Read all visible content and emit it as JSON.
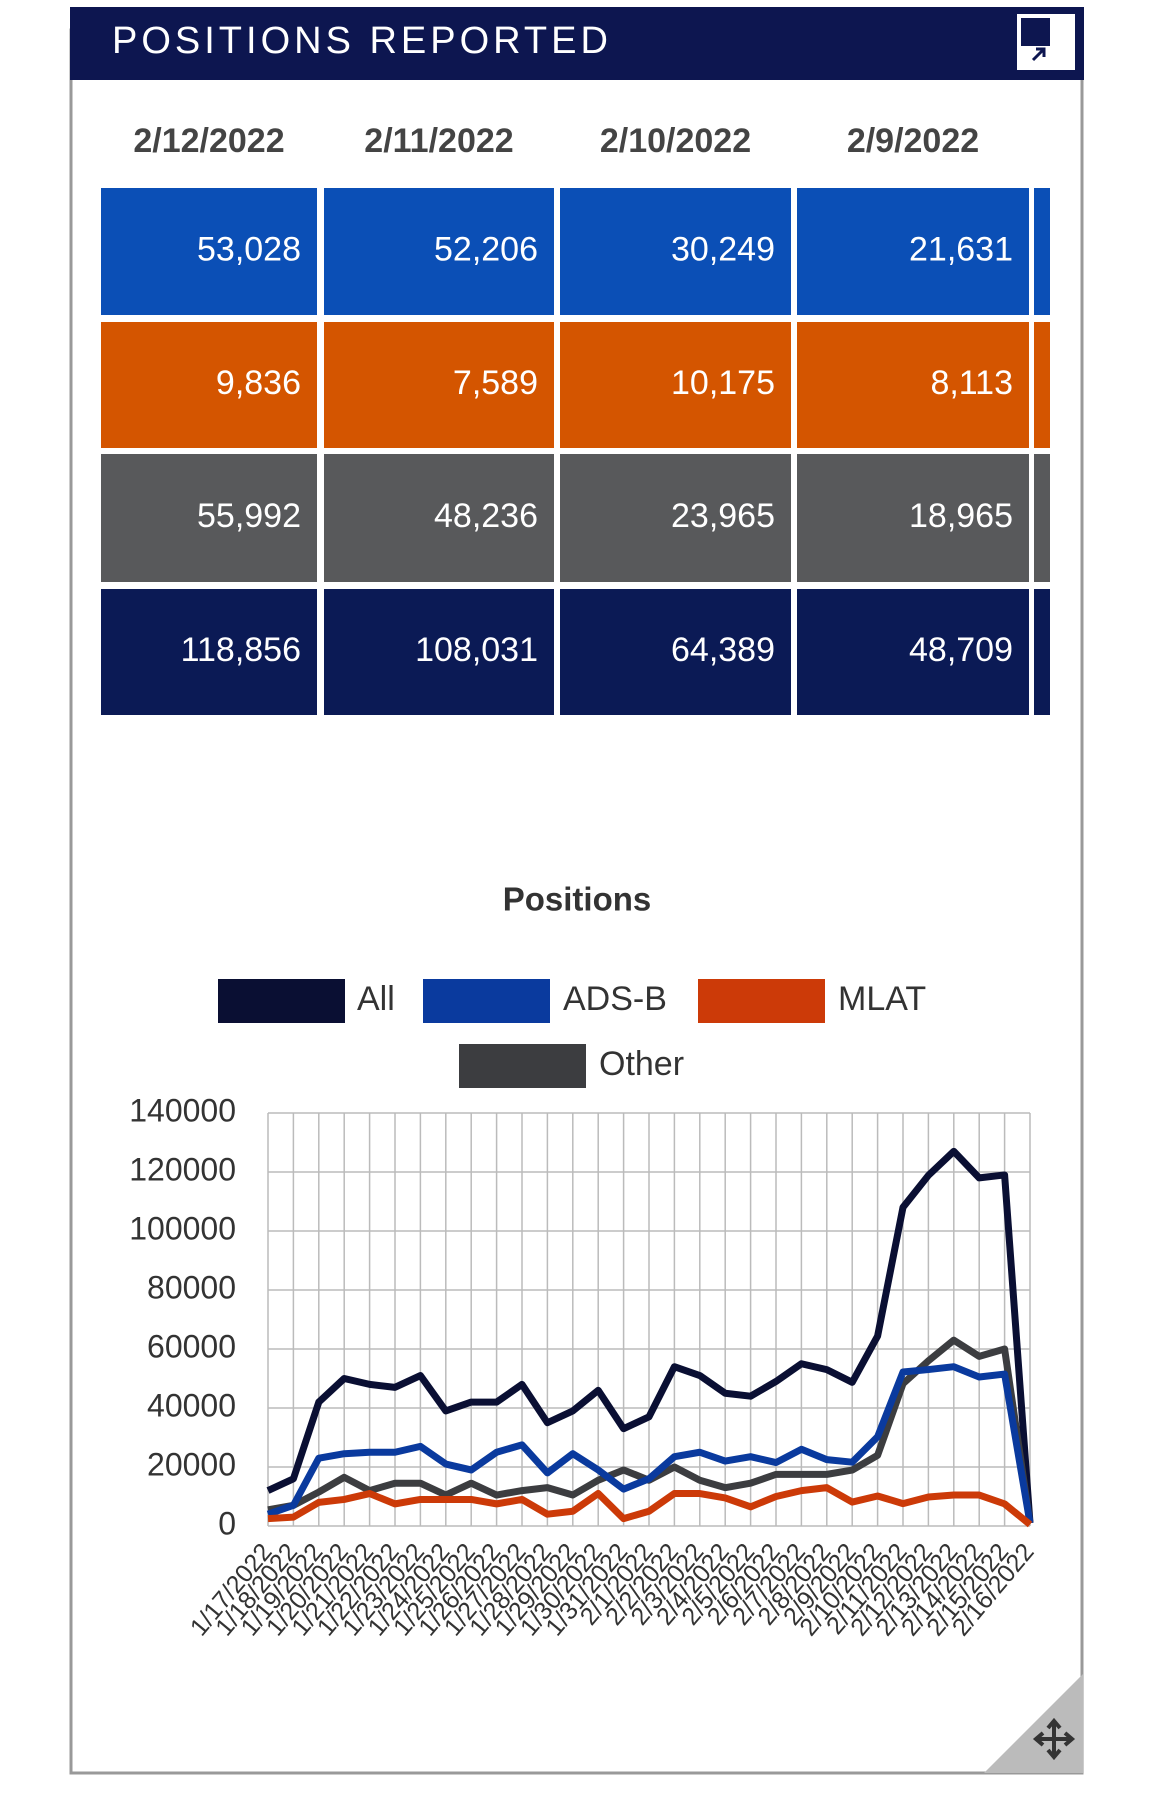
{
  "header": {
    "title": "POSITIONS REPORTED"
  },
  "table": {
    "columns": [
      "2/12/2022",
      "2/11/2022",
      "2/10/2022",
      "2/9/2022"
    ],
    "row_colors": [
      "#0b4fb6",
      "#d45500",
      "#58595b",
      "#0b1a55"
    ],
    "rows": [
      [
        "53,028",
        "52,206",
        "30,249",
        "21,631"
      ],
      [
        "9,836",
        "7,589",
        "10,175",
        "8,113"
      ],
      [
        "55,992",
        "48,236",
        "23,965",
        "18,965"
      ],
      [
        "118,856",
        "108,031",
        "64,389",
        "48,709"
      ]
    ]
  },
  "chart_data": {
    "type": "line",
    "title": "Positions",
    "categories": [
      "1/17/2022",
      "1/18/2022",
      "1/19/2022",
      "1/20/2022",
      "1/21/2022",
      "1/22/2022",
      "1/23/2022",
      "1/24/2022",
      "1/25/2022",
      "1/26/2022",
      "1/27/2022",
      "1/28/2022",
      "1/29/2022",
      "1/30/2022",
      "1/31/2022",
      "2/1/2022",
      "2/2/2022",
      "2/3/2022",
      "2/4/2022",
      "2/5/2022",
      "2/6/2022",
      "2/7/2022",
      "2/8/2022",
      "2/9/2022",
      "2/10/2022",
      "2/11/2022",
      "2/12/2022",
      "2/13/2022",
      "2/14/2022",
      "2/15/2022",
      "2/16/2022"
    ],
    "series": [
      {
        "name": "All",
        "color": "#0a0f33",
        "values": [
          12000,
          16000,
          42000,
          50000,
          48000,
          47000,
          51000,
          39000,
          42000,
          42000,
          48000,
          35000,
          39000,
          46000,
          33000,
          37000,
          54000,
          51000,
          45000,
          44000,
          49000,
          55000,
          53000,
          48709,
          64389,
          108031,
          118856,
          127000,
          118000,
          119000,
          1000
        ]
      },
      {
        "name": "ADS-B",
        "color": "#0a3a9e",
        "values": [
          4000,
          7000,
          23000,
          24500,
          25000,
          25000,
          27000,
          21000,
          19000,
          25000,
          27500,
          18000,
          24500,
          19000,
          12500,
          16000,
          23500,
          25000,
          22000,
          23500,
          21500,
          26000,
          22500,
          21631,
          30249,
          52206,
          53028,
          54000,
          50500,
          51500,
          1000
        ]
      },
      {
        "name": "MLAT",
        "color": "#cc3a08",
        "values": [
          2500,
          3000,
          8000,
          9000,
          11000,
          7500,
          9000,
          9000,
          9000,
          7500,
          9000,
          4000,
          5000,
          11000,
          2500,
          5000,
          11000,
          11000,
          9500,
          6500,
          10000,
          12000,
          13000,
          8113,
          10175,
          7589,
          9836,
          10500,
          10500,
          7500,
          500
        ]
      },
      {
        "name": "Other",
        "color": "#3c3d40",
        "values": [
          5500,
          7000,
          11500,
          16500,
          12000,
          14500,
          14500,
          10500,
          14500,
          10500,
          12000,
          13000,
          10500,
          15500,
          19000,
          15500,
          20000,
          15500,
          13000,
          14500,
          17500,
          17500,
          17500,
          18965,
          23965,
          48236,
          55992,
          63000,
          57500,
          60000,
          1000
        ]
      }
    ],
    "ylim": [
      0,
      140000
    ],
    "yticks": [
      0,
      20000,
      40000,
      60000,
      80000,
      100000,
      120000,
      140000
    ],
    "grid": true
  }
}
